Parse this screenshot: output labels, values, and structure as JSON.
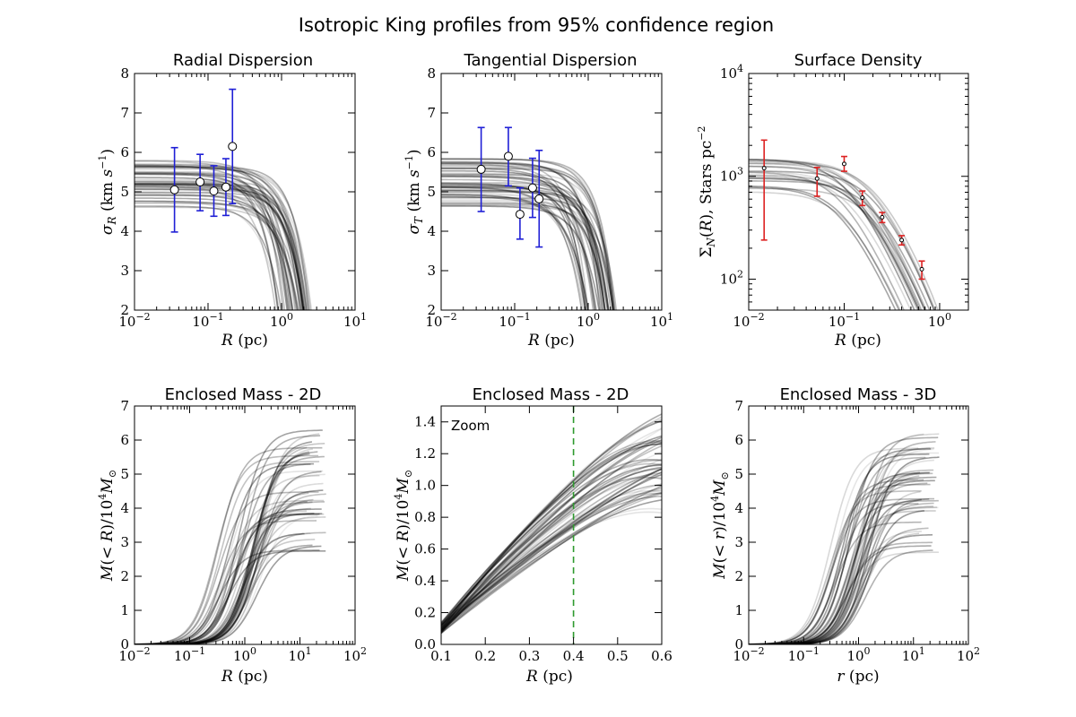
{
  "figure_title": "Isotropic King profiles from 95% confidence region",
  "chart_data": [
    {
      "id": "radial",
      "type": "line",
      "title": "Radial Dispersion",
      "xlabel": "R (pc)",
      "ylabel": "σ_R (km s^-1)",
      "xscale": "log",
      "xlim": [
        0.01,
        10
      ],
      "ylim": [
        2,
        8
      ],
      "xticks": [
        {
          "v": 0.01,
          "b": "10",
          "e": "−2"
        },
        {
          "v": 0.1,
          "b": "10",
          "e": "−1"
        },
        {
          "v": 1,
          "b": "10",
          "e": "0"
        },
        {
          "v": 10,
          "b": "10",
          "e": "1"
        }
      ],
      "yticks": [
        {
          "v": 2,
          "b": "2"
        },
        {
          "v": 3,
          "b": "3"
        },
        {
          "v": 4,
          "b": "4"
        },
        {
          "v": 5,
          "b": "5"
        },
        {
          "v": 6,
          "b": "6"
        },
        {
          "v": 7,
          "b": "7"
        },
        {
          "v": 8,
          "b": "8"
        }
      ],
      "points": [
        {
          "x": 0.035,
          "y": 5.05,
          "lo": 3.98,
          "hi": 6.12
        },
        {
          "x": 0.078,
          "y": 5.25,
          "lo": 4.52,
          "hi": 5.95
        },
        {
          "x": 0.12,
          "y": 5.02,
          "lo": 4.38,
          "hi": 5.66
        },
        {
          "x": 0.175,
          "y": 5.12,
          "lo": 4.4,
          "hi": 5.84
        },
        {
          "x": 0.215,
          "y": 6.15,
          "lo": 4.7,
          "hi": 7.6
        }
      ],
      "errorbar_color": "#1f1fd6",
      "marker": "large",
      "models": {
        "kind": "dispersion",
        "count": 50,
        "y0_range": [
          4.6,
          5.85
        ],
        "xc_range": [
          0.75,
          2.2
        ]
      }
    },
    {
      "id": "tangential",
      "type": "line",
      "title": "Tangential Dispersion",
      "xlabel": "R (pc)",
      "ylabel": "σ_T (km s^-1)",
      "xscale": "log",
      "xlim": [
        0.01,
        10
      ],
      "ylim": [
        2,
        8
      ],
      "xticks": [
        {
          "v": 0.01,
          "b": "10",
          "e": "−2"
        },
        {
          "v": 0.1,
          "b": "10",
          "e": "−1"
        },
        {
          "v": 1,
          "b": "10",
          "e": "0"
        },
        {
          "v": 10,
          "b": "10",
          "e": "1"
        }
      ],
      "yticks": [
        {
          "v": 2,
          "b": "2"
        },
        {
          "v": 3,
          "b": "3"
        },
        {
          "v": 4,
          "b": "4"
        },
        {
          "v": 5,
          "b": "5"
        },
        {
          "v": 6,
          "b": "6"
        },
        {
          "v": 7,
          "b": "7"
        },
        {
          "v": 8,
          "b": "8"
        }
      ],
      "points": [
        {
          "x": 0.035,
          "y": 5.57,
          "lo": 4.5,
          "hi": 6.63
        },
        {
          "x": 0.082,
          "y": 5.9,
          "lo": 5.15,
          "hi": 6.63
        },
        {
          "x": 0.118,
          "y": 4.43,
          "lo": 3.8,
          "hi": 5.1
        },
        {
          "x": 0.175,
          "y": 5.1,
          "lo": 4.35,
          "hi": 5.85
        },
        {
          "x": 0.215,
          "y": 4.82,
          "lo": 3.6,
          "hi": 6.05
        }
      ],
      "errorbar_color": "#1f1fd6",
      "marker": "large",
      "models": {
        "kind": "dispersion",
        "count": 50,
        "y0_range": [
          4.6,
          5.85
        ],
        "xc_range": [
          0.75,
          2.2
        ]
      }
    },
    {
      "id": "surface",
      "type": "line",
      "title": "Surface Density",
      "xlabel": "R (pc)",
      "ylabel": "Σ_N(R), Stars pc^-2",
      "xscale": "log",
      "yscale": "log",
      "xlim": [
        0.01,
        2
      ],
      "ylim": [
        50,
        10000
      ],
      "xticks": [
        {
          "v": 0.01,
          "b": "10",
          "e": "−2"
        },
        {
          "v": 0.1,
          "b": "10",
          "e": "−1"
        },
        {
          "v": 1,
          "b": "10",
          "e": "0"
        }
      ],
      "yticks": [
        {
          "v": 100,
          "b": "10",
          "e": "2"
        },
        {
          "v": 1000,
          "b": "10",
          "e": "3"
        },
        {
          "v": 10000,
          "b": "10",
          "e": "4"
        }
      ],
      "points": [
        {
          "x": 0.0145,
          "y": 1200,
          "lo": 240,
          "hi": 2250
        },
        {
          "x": 0.052,
          "y": 950,
          "lo": 640,
          "hi": 1220
        },
        {
          "x": 0.1,
          "y": 1320,
          "lo": 1120,
          "hi": 1560
        },
        {
          "x": 0.155,
          "y": 620,
          "lo": 520,
          "hi": 720
        },
        {
          "x": 0.25,
          "y": 400,
          "lo": 355,
          "hi": 445
        },
        {
          "x": 0.4,
          "y": 240,
          "lo": 215,
          "hi": 265
        },
        {
          "x": 0.65,
          "y": 125,
          "lo": 100,
          "hi": 150
        }
      ],
      "errorbar_color": "#dd2222",
      "marker": "small",
      "models": {
        "kind": "surface",
        "count": 22
      }
    },
    {
      "id": "mass2d",
      "type": "line",
      "title": "Enclosed Mass - 2D",
      "xlabel": "R (pc)",
      "ylabel": "M(<R)/10^4 M_sun",
      "xscale": "log",
      "xlim": [
        0.01,
        100
      ],
      "ylim": [
        0,
        7
      ],
      "xticks": [
        {
          "v": 0.01,
          "b": "10",
          "e": "−2"
        },
        {
          "v": 0.1,
          "b": "10",
          "e": "−1"
        },
        {
          "v": 1,
          "b": "10",
          "e": "0"
        },
        {
          "v": 10,
          "b": "10",
          "e": "1"
        },
        {
          "v": 100,
          "b": "10",
          "e": "2"
        }
      ],
      "yticks": [
        {
          "v": 0,
          "b": "0"
        },
        {
          "v": 1,
          "b": "1"
        },
        {
          "v": 2,
          "b": "2"
        },
        {
          "v": 3,
          "b": "3"
        },
        {
          "v": 4,
          "b": "4"
        },
        {
          "v": 5,
          "b": "5"
        },
        {
          "v": 6,
          "b": "6"
        },
        {
          "v": 7,
          "b": "7"
        }
      ],
      "models": {
        "kind": "mass",
        "count": 48,
        "max_range": [
          2.7,
          6.3
        ],
        "rt_range": [
          12,
          30
        ],
        "a_range": [
          0.3,
          1.9
        ]
      }
    },
    {
      "id": "zoom",
      "type": "line",
      "title": "Enclosed Mass - 2D",
      "annotation": "Zoom",
      "xlabel": "R (pc)",
      "ylabel": "M(<R)/10^4 M_sun",
      "xscale": "linear",
      "xlim": [
        0.1,
        0.6
      ],
      "ylim": [
        0,
        1.5
      ],
      "xticks": [
        {
          "v": 0.1,
          "b": "0.1"
        },
        {
          "v": 0.2,
          "b": "0.2"
        },
        {
          "v": 0.3,
          "b": "0.3"
        },
        {
          "v": 0.4,
          "b": "0.4"
        },
        {
          "v": 0.5,
          "b": "0.5"
        },
        {
          "v": 0.6,
          "b": "0.6"
        }
      ],
      "yticks": [
        {
          "v": 0,
          "b": "0.0"
        },
        {
          "v": 0.2,
          "b": "0.2"
        },
        {
          "v": 0.4,
          "b": "0.4"
        },
        {
          "v": 0.6,
          "b": "0.6"
        },
        {
          "v": 0.8,
          "b": "0.8"
        },
        {
          "v": 1.0,
          "b": "1.0"
        },
        {
          "v": 1.2,
          "b": "1.2"
        },
        {
          "v": 1.4,
          "b": "1.4"
        }
      ],
      "vline": {
        "x": 0.4,
        "color": "#2e9a2e",
        "style": "dashed"
      },
      "models": {
        "kind": "zoom",
        "count": 48,
        "y01_range": [
          0.07,
          0.14
        ],
        "y04_range": [
          0.68,
          1.05
        ]
      }
    },
    {
      "id": "mass3d",
      "type": "line",
      "title": "Enclosed Mass - 3D",
      "xlabel": "r (pc)",
      "ylabel": "M(<r)/10^4 M_sun",
      "xscale": "log",
      "xlim": [
        0.01,
        100
      ],
      "ylim": [
        0,
        7
      ],
      "xticks": [
        {
          "v": 0.01,
          "b": "10",
          "e": "−2"
        },
        {
          "v": 0.1,
          "b": "10",
          "e": "−1"
        },
        {
          "v": 1,
          "b": "10",
          "e": "0"
        },
        {
          "v": 10,
          "b": "10",
          "e": "1"
        },
        {
          "v": 100,
          "b": "10",
          "e": "2"
        }
      ],
      "yticks": [
        {
          "v": 0,
          "b": "0"
        },
        {
          "v": 1,
          "b": "1"
        },
        {
          "v": 2,
          "b": "2"
        },
        {
          "v": 3,
          "b": "3"
        },
        {
          "v": 4,
          "b": "4"
        },
        {
          "v": 5,
          "b": "5"
        },
        {
          "v": 6,
          "b": "6"
        },
        {
          "v": 7,
          "b": "7"
        }
      ],
      "models": {
        "kind": "mass",
        "count": 48,
        "max_range": [
          2.7,
          6.3
        ],
        "rt_range": [
          12,
          30
        ],
        "a_range": [
          0.25,
          1.6
        ]
      }
    }
  ]
}
